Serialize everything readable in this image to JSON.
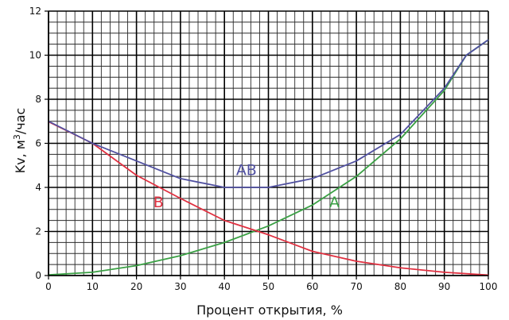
{
  "chart_data": {
    "type": "line",
    "xlabel": "Процент открытия, %",
    "ylabel_main": "Kv, м",
    "ylabel_sup": "3",
    "ylabel_tail": "/час",
    "xlim": [
      0,
      100
    ],
    "ylim": [
      0,
      12
    ],
    "x_ticks": [
      0,
      10,
      20,
      30,
      40,
      50,
      60,
      70,
      80,
      90,
      100
    ],
    "y_ticks": [
      0,
      2,
      4,
      6,
      8,
      10,
      12
    ],
    "grid": true,
    "minor_x_step": 2,
    "minor_y_step": 0.5,
    "series": [
      {
        "name": "A",
        "color": "#3aa044",
        "points": [
          [
            0,
            0.03
          ],
          [
            10,
            0.15
          ],
          [
            20,
            0.45
          ],
          [
            30,
            0.9
          ],
          [
            40,
            1.5
          ],
          [
            50,
            2.25
          ],
          [
            60,
            3.2
          ],
          [
            70,
            4.5
          ],
          [
            80,
            6.2
          ],
          [
            90,
            8.4
          ],
          [
            95,
            10.0
          ],
          [
            100,
            10.7
          ]
        ]
      },
      {
        "name": "B",
        "color": "#e03040",
        "points": [
          [
            0,
            6.98
          ],
          [
            10,
            6.0
          ],
          [
            20,
            4.55
          ],
          [
            30,
            3.5
          ],
          [
            40,
            2.5
          ],
          [
            50,
            1.85
          ],
          [
            60,
            1.1
          ],
          [
            70,
            0.65
          ],
          [
            80,
            0.35
          ],
          [
            90,
            0.15
          ],
          [
            100,
            0.02
          ]
        ]
      },
      {
        "name": "AB",
        "color": "#5050a0",
        "points": [
          [
            0,
            7.0
          ],
          [
            10,
            6.0
          ],
          [
            20,
            5.2
          ],
          [
            30,
            4.4
          ],
          [
            40,
            4.0
          ],
          [
            50,
            4.0
          ],
          [
            60,
            4.4
          ],
          [
            70,
            5.2
          ],
          [
            80,
            6.4
          ],
          [
            90,
            8.5
          ],
          [
            95,
            10.0
          ],
          [
            100,
            10.7
          ]
        ]
      }
    ],
    "labels": [
      {
        "text": "AB",
        "x": 45,
        "y": 4.55,
        "color": "#5050a0"
      },
      {
        "text": "B",
        "x": 25,
        "y": 3.1,
        "color": "#e03040"
      },
      {
        "text": "A",
        "x": 65,
        "y": 3.1,
        "color": "#3aa044"
      }
    ]
  }
}
